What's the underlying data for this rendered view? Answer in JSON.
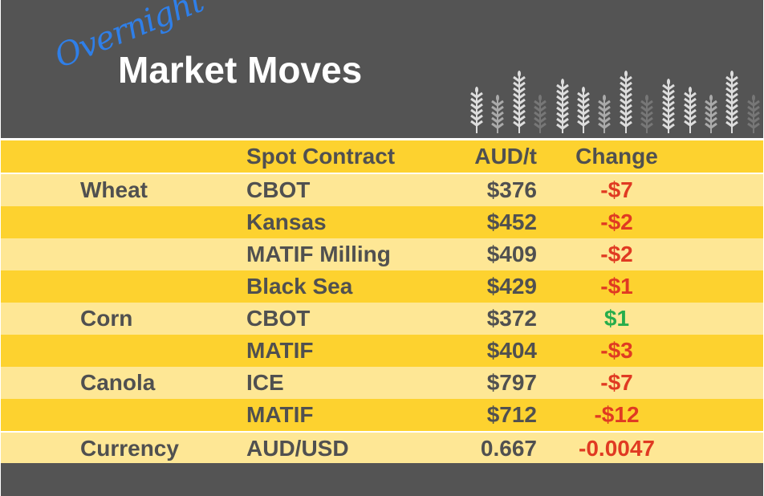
{
  "header": {
    "script_text": "Overnight",
    "title": "Market Moves",
    "icon": "wheat-stalks-icon"
  },
  "colors": {
    "background_dark": "#545454",
    "row_dark": "#fdd22f",
    "row_light": "#fee795",
    "negative": "#e03a22",
    "positive": "#26ad4b",
    "script": "#2f7fe8"
  },
  "columns": {
    "commodity": "",
    "contract": "Spot Contract",
    "price": "AUD/t",
    "change": "Change"
  },
  "rows": [
    {
      "commodity": "Wheat",
      "contract": "CBOT",
      "price": "$376",
      "change": "-$7",
      "direction": "down"
    },
    {
      "commodity": "",
      "contract": "Kansas",
      "price": "$452",
      "change": "-$2",
      "direction": "down"
    },
    {
      "commodity": "",
      "contract": "MATIF Milling",
      "price": "$409",
      "change": "-$2",
      "direction": "down"
    },
    {
      "commodity": "",
      "contract": "Black Sea",
      "price": "$429",
      "change": "-$1",
      "direction": "down"
    },
    {
      "commodity": "Corn",
      "contract": "CBOT",
      "price": "$372",
      "change": "$1",
      "direction": "up"
    },
    {
      "commodity": "",
      "contract": "MATIF",
      "price": "$404",
      "change": "-$3",
      "direction": "down"
    },
    {
      "commodity": "Canola",
      "contract": "ICE",
      "price": "$797",
      "change": "-$7",
      "direction": "down"
    },
    {
      "commodity": "",
      "contract": "MATIF",
      "price": "$712",
      "change": "-$12",
      "direction": "down"
    },
    {
      "commodity": "Currency",
      "contract": "AUD/USD",
      "price": "0.667",
      "change": "-0.0047",
      "direction": "down"
    }
  ]
}
